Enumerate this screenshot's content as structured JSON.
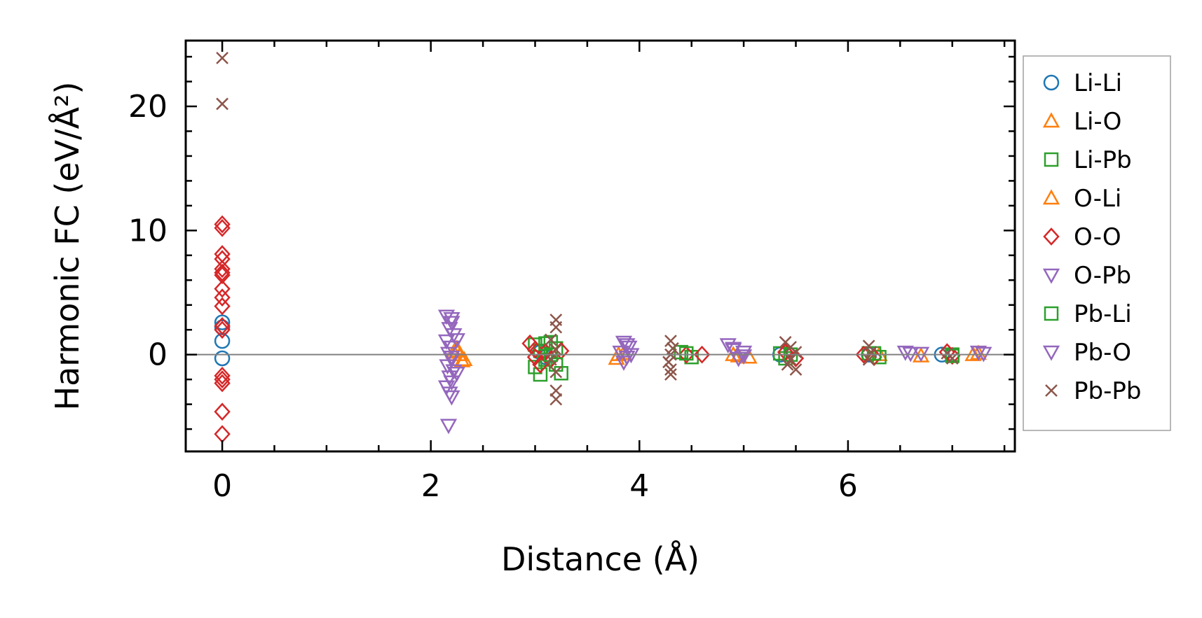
{
  "chart_data": {
    "type": "scatter",
    "xlabel": "Distance (Å)",
    "ylabel": "Harmonic FC (eV/Å²)",
    "xlim": [
      -0.35,
      7.6
    ],
    "ylim": [
      -7.8,
      25.3
    ],
    "x_ticks": [
      0,
      2,
      4,
      6
    ],
    "y_ticks": [
      0,
      10,
      20
    ],
    "x_tick_labels": [
      "0",
      "2",
      "4",
      "6"
    ],
    "y_tick_labels": [
      "0",
      "10",
      "20"
    ],
    "grid": false,
    "zero_line": true,
    "legend_position": "outside-right",
    "series": [
      {
        "name": "Li-Li",
        "marker": "circle",
        "color": "#1f77b4",
        "points": [
          [
            0,
            2.6
          ],
          [
            0,
            2.2
          ],
          [
            0,
            1.1
          ],
          [
            0,
            -0.3
          ],
          [
            3.05,
            0.2
          ],
          [
            3.1,
            -0.2
          ],
          [
            5.35,
            0.0
          ],
          [
            6.2,
            0.0
          ],
          [
            6.9,
            0.0
          ]
        ]
      },
      {
        "name": "Li-O",
        "marker": "triangle-up",
        "color": "#ff7f0e",
        "points": [
          [
            2.25,
            0.5
          ],
          [
            2.28,
            0.0
          ],
          [
            2.3,
            -0.5
          ],
          [
            2.22,
            0.2
          ],
          [
            3.8,
            0.0
          ],
          [
            3.78,
            -0.3
          ],
          [
            4.9,
            0.0
          ],
          [
            5.05,
            -0.2
          ],
          [
            6.3,
            0.0
          ],
          [
            6.7,
            -0.1
          ],
          [
            7.2,
            0.0
          ]
        ]
      },
      {
        "name": "Li-Pb",
        "marker": "square",
        "color": "#2ca02c",
        "points": [
          [
            3.0,
            0.8
          ],
          [
            3.05,
            0.3
          ],
          [
            3.1,
            -0.4
          ],
          [
            3.0,
            -1.0
          ],
          [
            3.05,
            -1.6
          ],
          [
            3.15,
            1.0
          ],
          [
            3.2,
            0.5
          ],
          [
            3.25,
            -1.5
          ],
          [
            4.4,
            0.2
          ],
          [
            4.5,
            -0.2
          ],
          [
            5.35,
            0.1
          ],
          [
            5.4,
            -0.3
          ],
          [
            6.2,
            0.1
          ],
          [
            6.3,
            -0.2
          ],
          [
            7.0,
            0.0
          ]
        ]
      },
      {
        "name": "O-Li",
        "marker": "triangle-up",
        "color": "#ff7f0e",
        "points": [
          [
            2.25,
            0.3
          ],
          [
            2.32,
            -0.4
          ],
          [
            3.85,
            0.1
          ],
          [
            4.95,
            -0.1
          ],
          [
            7.25,
            0.1
          ]
        ]
      },
      {
        "name": "O-O",
        "marker": "diamond",
        "color": "#d62728",
        "points": [
          [
            0,
            10.5
          ],
          [
            0,
            10.2
          ],
          [
            0,
            8.1
          ],
          [
            0,
            7.7
          ],
          [
            0,
            6.9
          ],
          [
            0,
            6.6
          ],
          [
            0,
            6.4
          ],
          [
            0,
            5.3
          ],
          [
            0,
            4.6
          ],
          [
            0,
            3.9
          ],
          [
            0,
            2.3
          ],
          [
            0,
            2.0
          ],
          [
            0,
            -1.7
          ],
          [
            0,
            -2.0
          ],
          [
            0,
            -2.3
          ],
          [
            0,
            -4.6
          ],
          [
            0,
            -6.4
          ],
          [
            2.95,
            0.9
          ],
          [
            3.0,
            0.4
          ],
          [
            3.0,
            -0.2
          ],
          [
            3.05,
            -0.8
          ],
          [
            3.1,
            0.2
          ],
          [
            3.15,
            -0.4
          ],
          [
            3.25,
            0.3
          ],
          [
            4.45,
            0.0
          ],
          [
            4.6,
            0.0
          ],
          [
            5.4,
            0.2
          ],
          [
            5.5,
            -0.3
          ],
          [
            6.15,
            0.0
          ],
          [
            6.25,
            -0.2
          ],
          [
            6.95,
            0.2
          ],
          [
            7.0,
            -0.1
          ]
        ]
      },
      {
        "name": "O-Pb",
        "marker": "triangle-down",
        "color": "#9467bd",
        "points": [
          [
            2.15,
            3.1
          ],
          [
            2.2,
            2.6
          ],
          [
            2.18,
            2.1
          ],
          [
            2.22,
            1.6
          ],
          [
            2.15,
            1.1
          ],
          [
            2.2,
            0.6
          ],
          [
            2.17,
            0.1
          ],
          [
            2.2,
            -0.4
          ],
          [
            2.16,
            -0.9
          ],
          [
            2.22,
            -1.3
          ],
          [
            2.18,
            -1.8
          ],
          [
            2.2,
            -2.2
          ],
          [
            2.15,
            -2.6
          ],
          [
            2.18,
            -3.1
          ],
          [
            2.17,
            -5.7
          ],
          [
            3.85,
            1.0
          ],
          [
            3.9,
            0.6
          ],
          [
            3.82,
            0.2
          ],
          [
            3.88,
            -0.2
          ],
          [
            3.85,
            -0.6
          ],
          [
            4.85,
            0.8
          ],
          [
            4.9,
            0.4
          ],
          [
            5.0,
            0.2
          ],
          [
            4.95,
            -0.3
          ],
          [
            6.55,
            0.2
          ],
          [
            6.7,
            0.1
          ],
          [
            7.25,
            0.2
          ]
        ]
      },
      {
        "name": "Pb-Li",
        "marker": "square",
        "color": "#2ca02c",
        "points": [
          [
            3.1,
            0.9
          ],
          [
            3.15,
            0.0
          ],
          [
            3.2,
            -0.8
          ],
          [
            4.45,
            0.1
          ],
          [
            5.45,
            0.0
          ],
          [
            6.25,
            0.1
          ],
          [
            7.0,
            -0.1
          ]
        ]
      },
      {
        "name": "Pb-O",
        "marker": "triangle-down",
        "color": "#9467bd",
        "points": [
          [
            2.2,
            2.9
          ],
          [
            2.25,
            1.2
          ],
          [
            2.2,
            -0.2
          ],
          [
            2.25,
            -1.5
          ],
          [
            2.2,
            -3.4
          ],
          [
            3.88,
            0.8
          ],
          [
            3.92,
            0.0
          ],
          [
            4.9,
            0.5
          ],
          [
            5.0,
            -0.1
          ],
          [
            6.6,
            0.1
          ],
          [
            7.3,
            0.1
          ]
        ]
      },
      {
        "name": "Pb-Pb",
        "marker": "x",
        "color": "#8c564b",
        "points": [
          [
            0,
            23.9
          ],
          [
            0,
            20.2
          ],
          [
            3.2,
            2.8
          ],
          [
            3.2,
            2.2
          ],
          [
            3.15,
            1.2
          ],
          [
            3.2,
            0.4
          ],
          [
            3.15,
            -0.4
          ],
          [
            3.2,
            -1.4
          ],
          [
            3.2,
            -2.9
          ],
          [
            3.2,
            -3.6
          ],
          [
            4.3,
            1.1
          ],
          [
            4.32,
            0.5
          ],
          [
            4.3,
            0.0
          ],
          [
            4.28,
            -0.6
          ],
          [
            4.3,
            -1.2
          ],
          [
            4.3,
            -1.6
          ],
          [
            5.4,
            1.0
          ],
          [
            5.45,
            0.6
          ],
          [
            5.5,
            0.2
          ],
          [
            5.45,
            -0.4
          ],
          [
            5.42,
            -0.8
          ],
          [
            5.5,
            -1.2
          ],
          [
            6.2,
            0.7
          ],
          [
            6.22,
            0.2
          ],
          [
            6.2,
            -0.4
          ],
          [
            6.95,
            0.1
          ],
          [
            7.0,
            -0.3
          ]
        ]
      }
    ]
  }
}
